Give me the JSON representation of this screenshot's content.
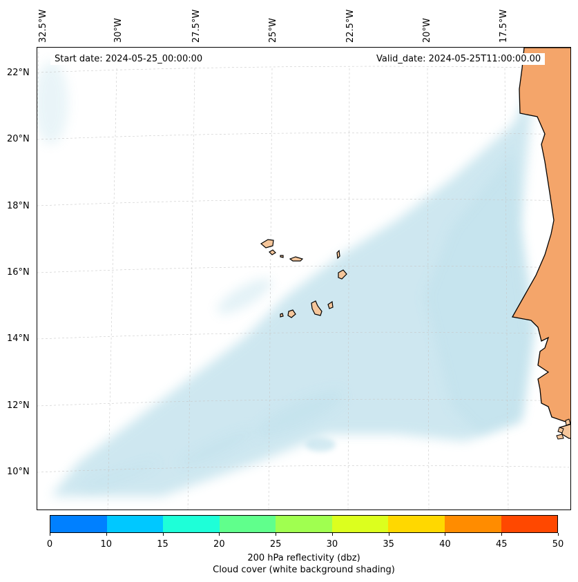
{
  "map": {
    "start_date": "Start date: 2024-05-25_00:00:00",
    "valid_date": "Valid_date: 2024-05-25T11:00:00.00",
    "lon_labels": [
      "32.5°W",
      "30°W",
      "27.5°W",
      "25°W",
      "22.5°W",
      "20°W",
      "17.5°W"
    ],
    "lat_labels": [
      "22°N",
      "20°N",
      "18°N",
      "16°N",
      "14°N",
      "12°N",
      "10°N"
    ],
    "colors": {
      "land": "#f4a56a",
      "islands": "#f5c69b",
      "cloud": "#add8e6",
      "gridline": "#c8c8c8"
    }
  },
  "colorbar": {
    "ticks": [
      "0",
      "10",
      "15",
      "20",
      "25",
      "30",
      "35",
      "40",
      "45",
      "50"
    ],
    "colors": [
      "#0080ff",
      "#00c8ff",
      "#1effd8",
      "#60ff8c",
      "#a0ff50",
      "#dcff1e",
      "#ffd800",
      "#ff8c00",
      "#ff4800"
    ],
    "label_line1": "200 hPa reflectivity (dbz)",
    "label_line2": "Cloud cover (white background shading)"
  }
}
